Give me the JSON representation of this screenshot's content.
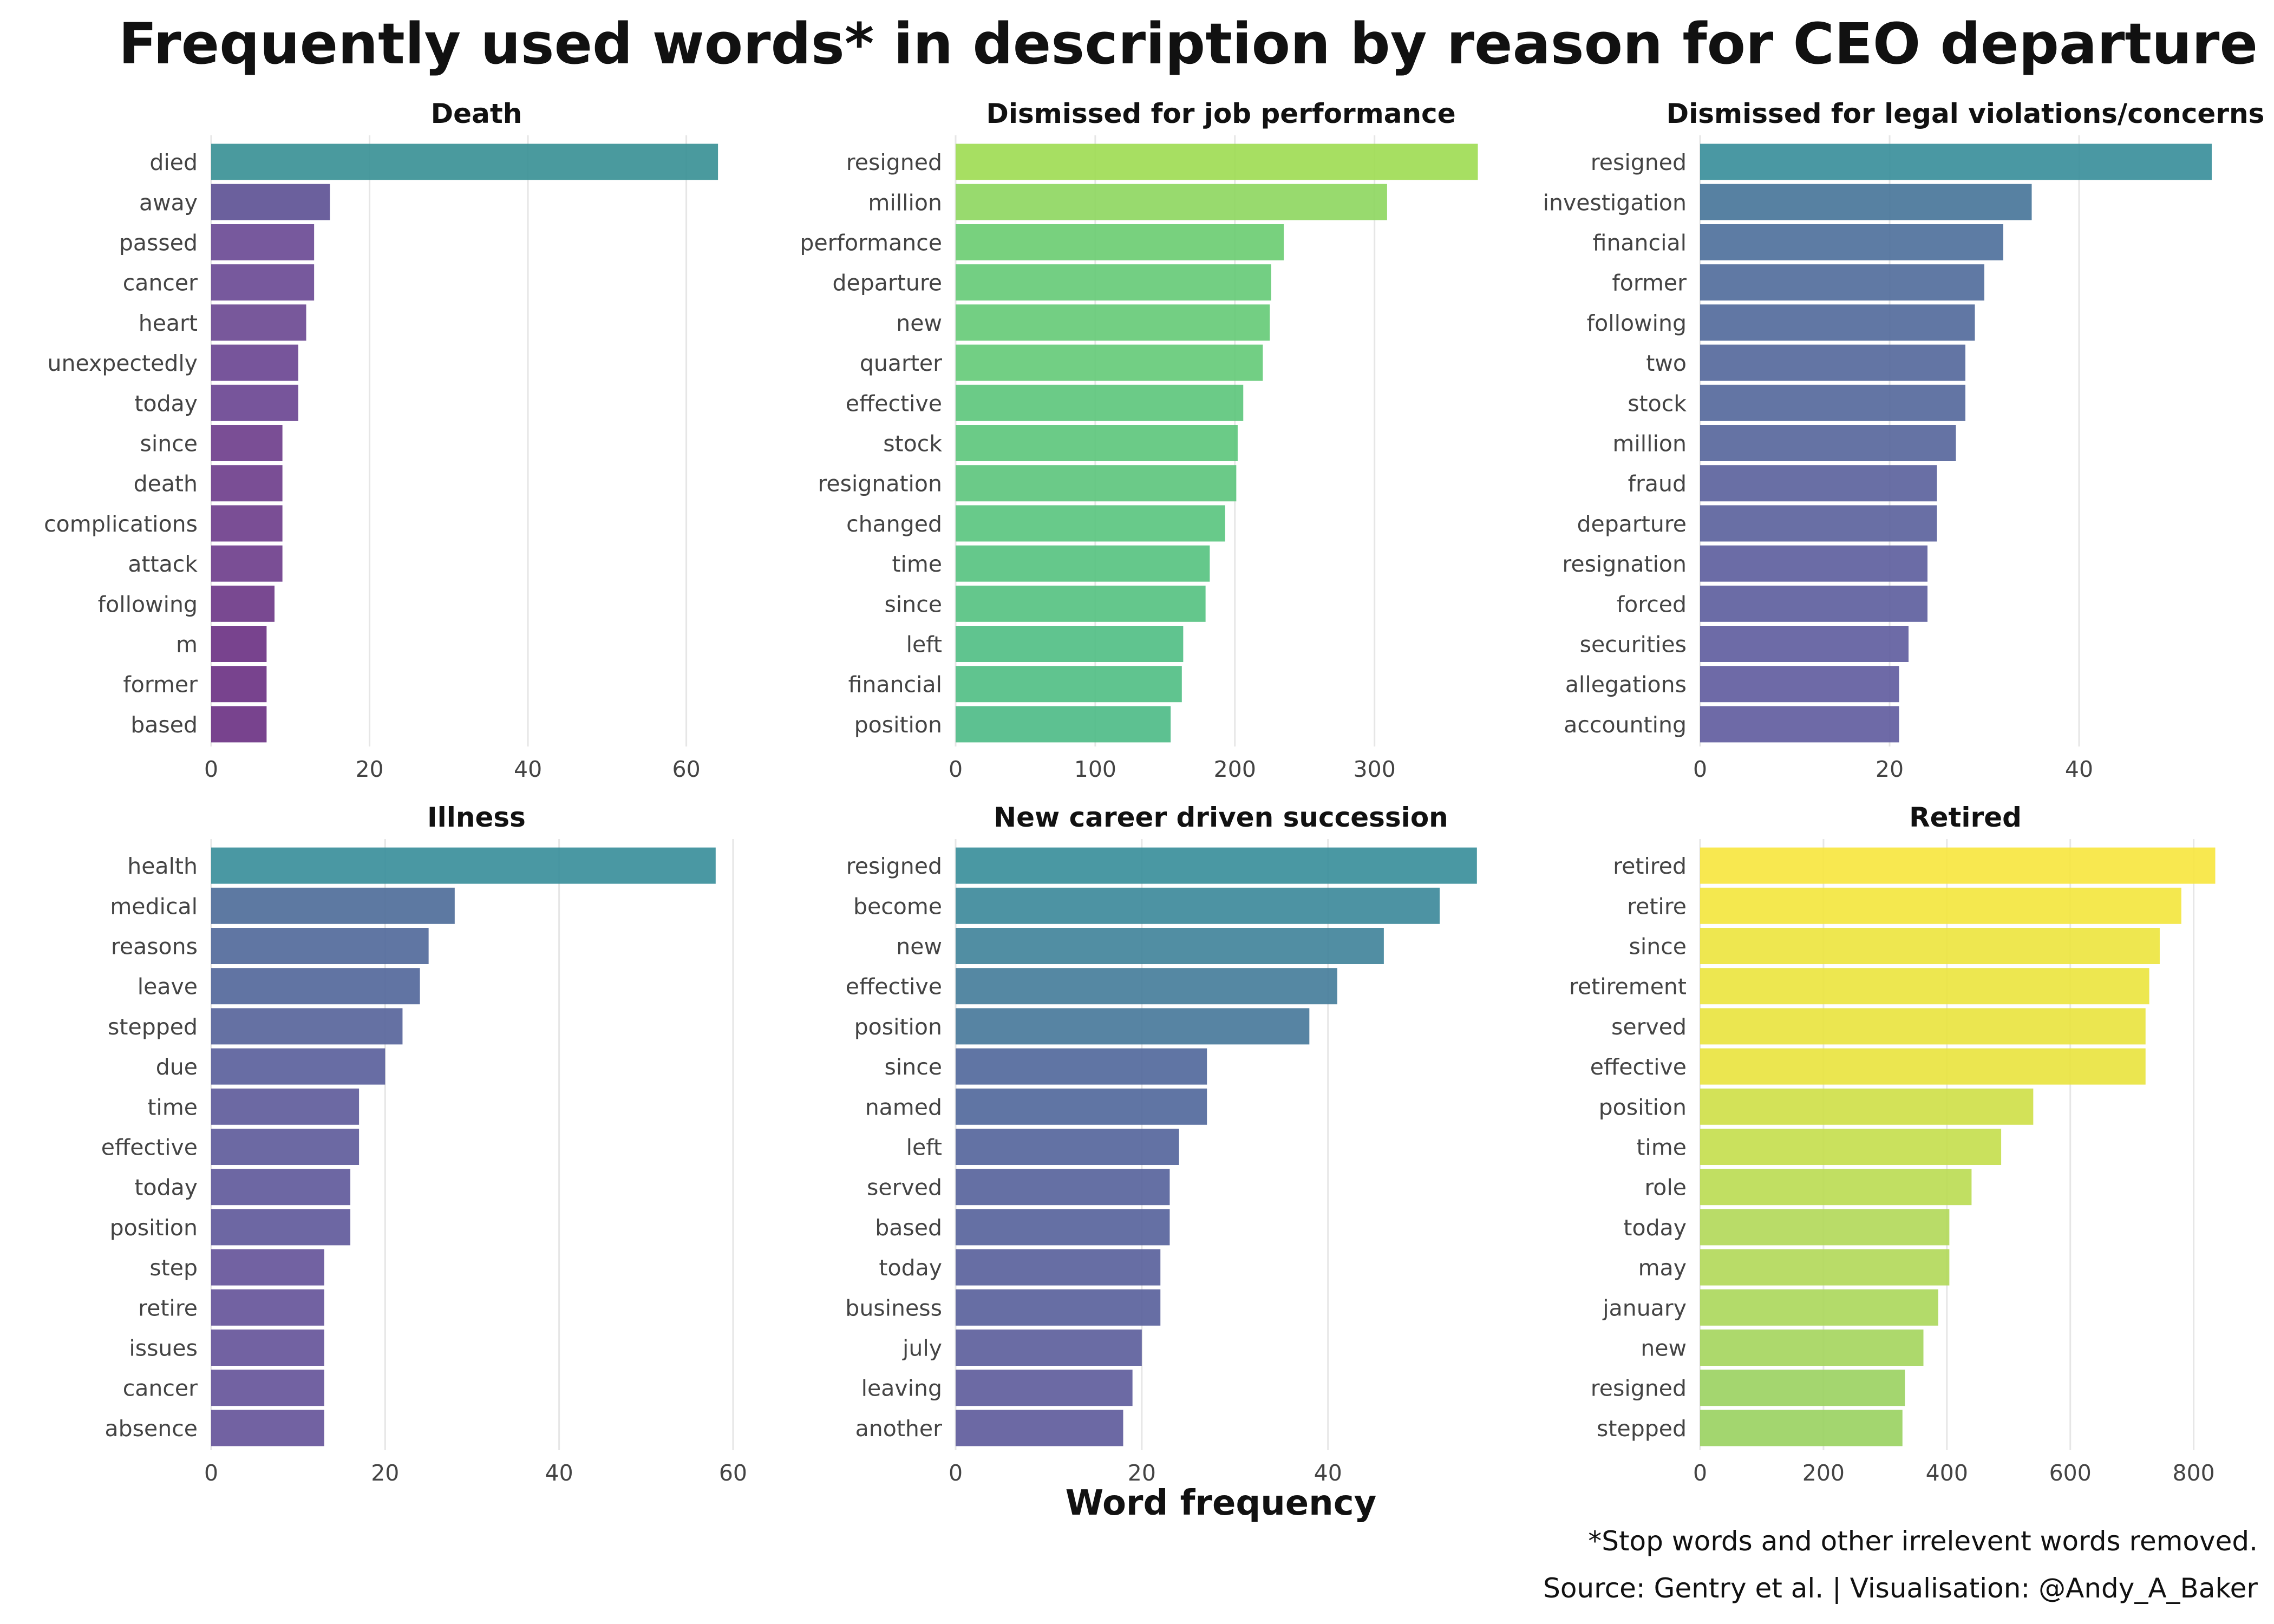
{
  "title": "Frequently used words* in description by reason for CEO departure",
  "xlabel": "Word frequency",
  "footnote": "*Stop words and other irrelevent words removed.",
  "source": "Source: Gentry et al. | Visualisation: @Andy_A_Baker",
  "chart_data": [
    {
      "type": "bar",
      "orientation": "horizontal",
      "title": "Death",
      "categories": [
        "died",
        "away",
        "passed",
        "cancer",
        "heart",
        "unexpectedly",
        "today",
        "since",
        "death",
        "complications",
        "attack",
        "following",
        "m",
        "former",
        "based"
      ],
      "values": [
        64,
        15,
        13,
        13,
        12,
        11,
        11,
        9,
        9,
        9,
        9,
        8,
        7,
        7,
        7
      ],
      "xlim": [
        0,
        67
      ],
      "xticks": [
        0,
        20,
        40,
        60
      ],
      "colors": [
        "#3b9196",
        "#5e5295",
        "#6b4b95",
        "#6b4b95",
        "#6d4a93",
        "#6b4792",
        "#6b4792",
        "#6f3f8c",
        "#6f3f8c",
        "#6f3f8c",
        "#6f3f8c",
        "#6e3a88",
        "#6c3384",
        "#6c3384",
        "#6c3384"
      ]
    },
    {
      "type": "bar",
      "orientation": "horizontal",
      "title": "Dismissed for job performance",
      "categories": [
        "resigned",
        "million",
        "performance",
        "departure",
        "new",
        "quarter",
        "effective",
        "stock",
        "resignation",
        "changed",
        "time",
        "since",
        "left",
        "financial",
        "position"
      ],
      "values": [
        374,
        309,
        235,
        226,
        225,
        220,
        206,
        202,
        201,
        193,
        182,
        179,
        163,
        162,
        154
      ],
      "xlim": [
        0,
        380
      ],
      "xticks": [
        0,
        100,
        200,
        300
      ],
      "colors": [
        "#9fdc55",
        "#8fd762",
        "#6ccd73",
        "#67cb78",
        "#67cb78",
        "#66cb79",
        "#5ec77d",
        "#5ec77d",
        "#5ec67e",
        "#5bc580",
        "#58c381",
        "#57c282",
        "#53bf85",
        "#53bf85",
        "#4fbc88"
      ]
    },
    {
      "type": "bar",
      "orientation": "horizontal",
      "title": "Dismissed for legal violations/concerns",
      "categories": [
        "resigned",
        "investigation",
        "financial",
        "former",
        "following",
        "two",
        "stock",
        "million",
        "fraud",
        "departure",
        "resignation",
        "forced",
        "securities",
        "allegations",
        "accounting"
      ],
      "values": [
        54,
        35,
        32,
        30,
        29,
        28,
        28,
        27,
        25,
        25,
        24,
        24,
        22,
        21,
        21
      ],
      "xlim": [
        0,
        56
      ],
      "xticks": [
        0,
        20,
        40
      ],
      "colors": [
        "#3b8f9b",
        "#49769a",
        "#4f719c",
        "#526e9c",
        "#546b9c",
        "#56699c",
        "#56699c",
        "#58679c",
        "#5c639d",
        "#5c639d",
        "#5e609e",
        "#5e609e",
        "#615e9f",
        "#625d9f",
        "#625d9f"
      ]
    },
    {
      "type": "bar",
      "orientation": "horizontal",
      "title": "Illness",
      "categories": [
        "health",
        "medical",
        "reasons",
        "leave",
        "stepped",
        "due",
        "time",
        "effective",
        "today",
        "position",
        "step",
        "retire",
        "issues",
        "cancer",
        "absence"
      ],
      "values": [
        58,
        28,
        25,
        24,
        22,
        20,
        17,
        17,
        16,
        16,
        13,
        13,
        13,
        13,
        13
      ],
      "xlim": [
        0,
        61
      ],
      "xticks": [
        0,
        20,
        40,
        60
      ],
      "colors": [
        "#3b8f9b",
        "#4f6e9a",
        "#536a9b",
        "#54689b",
        "#58659b",
        "#5b619c",
        "#5f5c9b",
        "#5f5c9b",
        "#615a9b",
        "#615a9b",
        "#66559a",
        "#66559a",
        "#66559a",
        "#66559a",
        "#66559a"
      ]
    },
    {
      "type": "bar",
      "orientation": "horizontal",
      "title": "New career driven succession",
      "categories": [
        "resigned",
        "become",
        "new",
        "effective",
        "position",
        "since",
        "named",
        "left",
        "served",
        "based",
        "today",
        "business",
        "july",
        "leaving",
        "another"
      ],
      "values": [
        56,
        52,
        46,
        41,
        38,
        27,
        27,
        24,
        23,
        23,
        22,
        22,
        20,
        19,
        18
      ],
      "xlim": [
        0,
        57
      ],
      "xticks": [
        0,
        20,
        40
      ],
      "colors": [
        "#3b8f9b",
        "#3e8a9b",
        "#42849b",
        "#467e9b",
        "#497a9b",
        "#53699c",
        "#53699c",
        "#56669c",
        "#58649c",
        "#58649c",
        "#5a629c",
        "#5a629c",
        "#5d5f9c",
        "#5f5d9c",
        "#605c9c"
      ]
    },
    {
      "type": "bar",
      "orientation": "horizontal",
      "title": "Retired",
      "categories": [
        "retired",
        "retire",
        "since",
        "retirement",
        "served",
        "effective",
        "position",
        "time",
        "role",
        "today",
        "may",
        "january",
        "new",
        "resigned",
        "stepped"
      ],
      "values": [
        835,
        780,
        745,
        728,
        722,
        722,
        540,
        488,
        440,
        404,
        404,
        386,
        362,
        332,
        328
      ],
      "xlim": [
        0,
        860
      ],
      "xticks": [
        0,
        200,
        400,
        600,
        800
      ],
      "colors": [
        "#f7e641",
        "#f3e640",
        "#ede541",
        "#ebe541",
        "#e9e441",
        "#e9e441",
        "#cfe04a",
        "#c6de4f",
        "#bcdc55",
        "#b3d95b",
        "#b3d95b",
        "#add85d",
        "#a6d660",
        "#9cd363",
        "#9bd363"
      ]
    }
  ]
}
